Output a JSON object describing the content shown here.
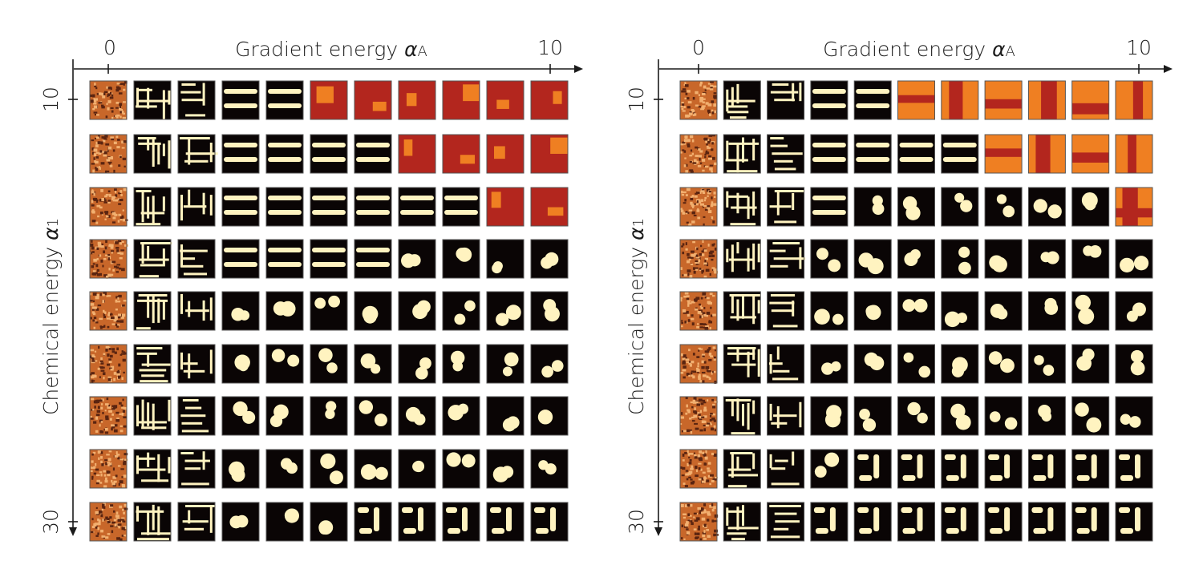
{
  "figure": {
    "panels": [
      {
        "id": "left",
        "x_axis": {
          "title": "Gradient energy ",
          "symbol": "α",
          "subscript": "A",
          "tick_start": "0",
          "tick_end": "10"
        },
        "y_axis": {
          "title": "Chemical energy ",
          "symbol": "α",
          "subscript": "1",
          "tick_start": "10",
          "tick_end": "30"
        },
        "rows": 9,
        "cols": 11,
        "red_tiles": [
          [
            0,
            5
          ],
          [
            0,
            6
          ],
          [
            0,
            7
          ],
          [
            0,
            8
          ],
          [
            0,
            9
          ],
          [
            0,
            10
          ],
          [
            1,
            7
          ],
          [
            1,
            8
          ],
          [
            1,
            9
          ],
          [
            1,
            10
          ],
          [
            2,
            9
          ],
          [
            2,
            10
          ]
        ]
      },
      {
        "id": "right",
        "x_axis": {
          "title": "Gradient energy ",
          "symbol": "α",
          "subscript": "A",
          "tick_start": "0",
          "tick_end": "10"
        },
        "y_axis": {
          "title": "Chemical energy ",
          "symbol": "α",
          "subscript": "1",
          "tick_start": "10",
          "tick_end": "30"
        },
        "rows": 9,
        "cols": 11,
        "red_tiles": [
          [
            0,
            5
          ],
          [
            0,
            6
          ],
          [
            0,
            7
          ],
          [
            0,
            8
          ],
          [
            0,
            9
          ],
          [
            0,
            10
          ],
          [
            1,
            7
          ],
          [
            1,
            8
          ],
          [
            1,
            9
          ],
          [
            1,
            10
          ],
          [
            2,
            10
          ]
        ]
      }
    ],
    "colors": {
      "noise": "#c8672a",
      "black": "#0a0505",
      "bright": "#fff3c0",
      "red": "#b3261e",
      "orange": "#ef7f22",
      "axis": "#1a1a1a"
    }
  }
}
